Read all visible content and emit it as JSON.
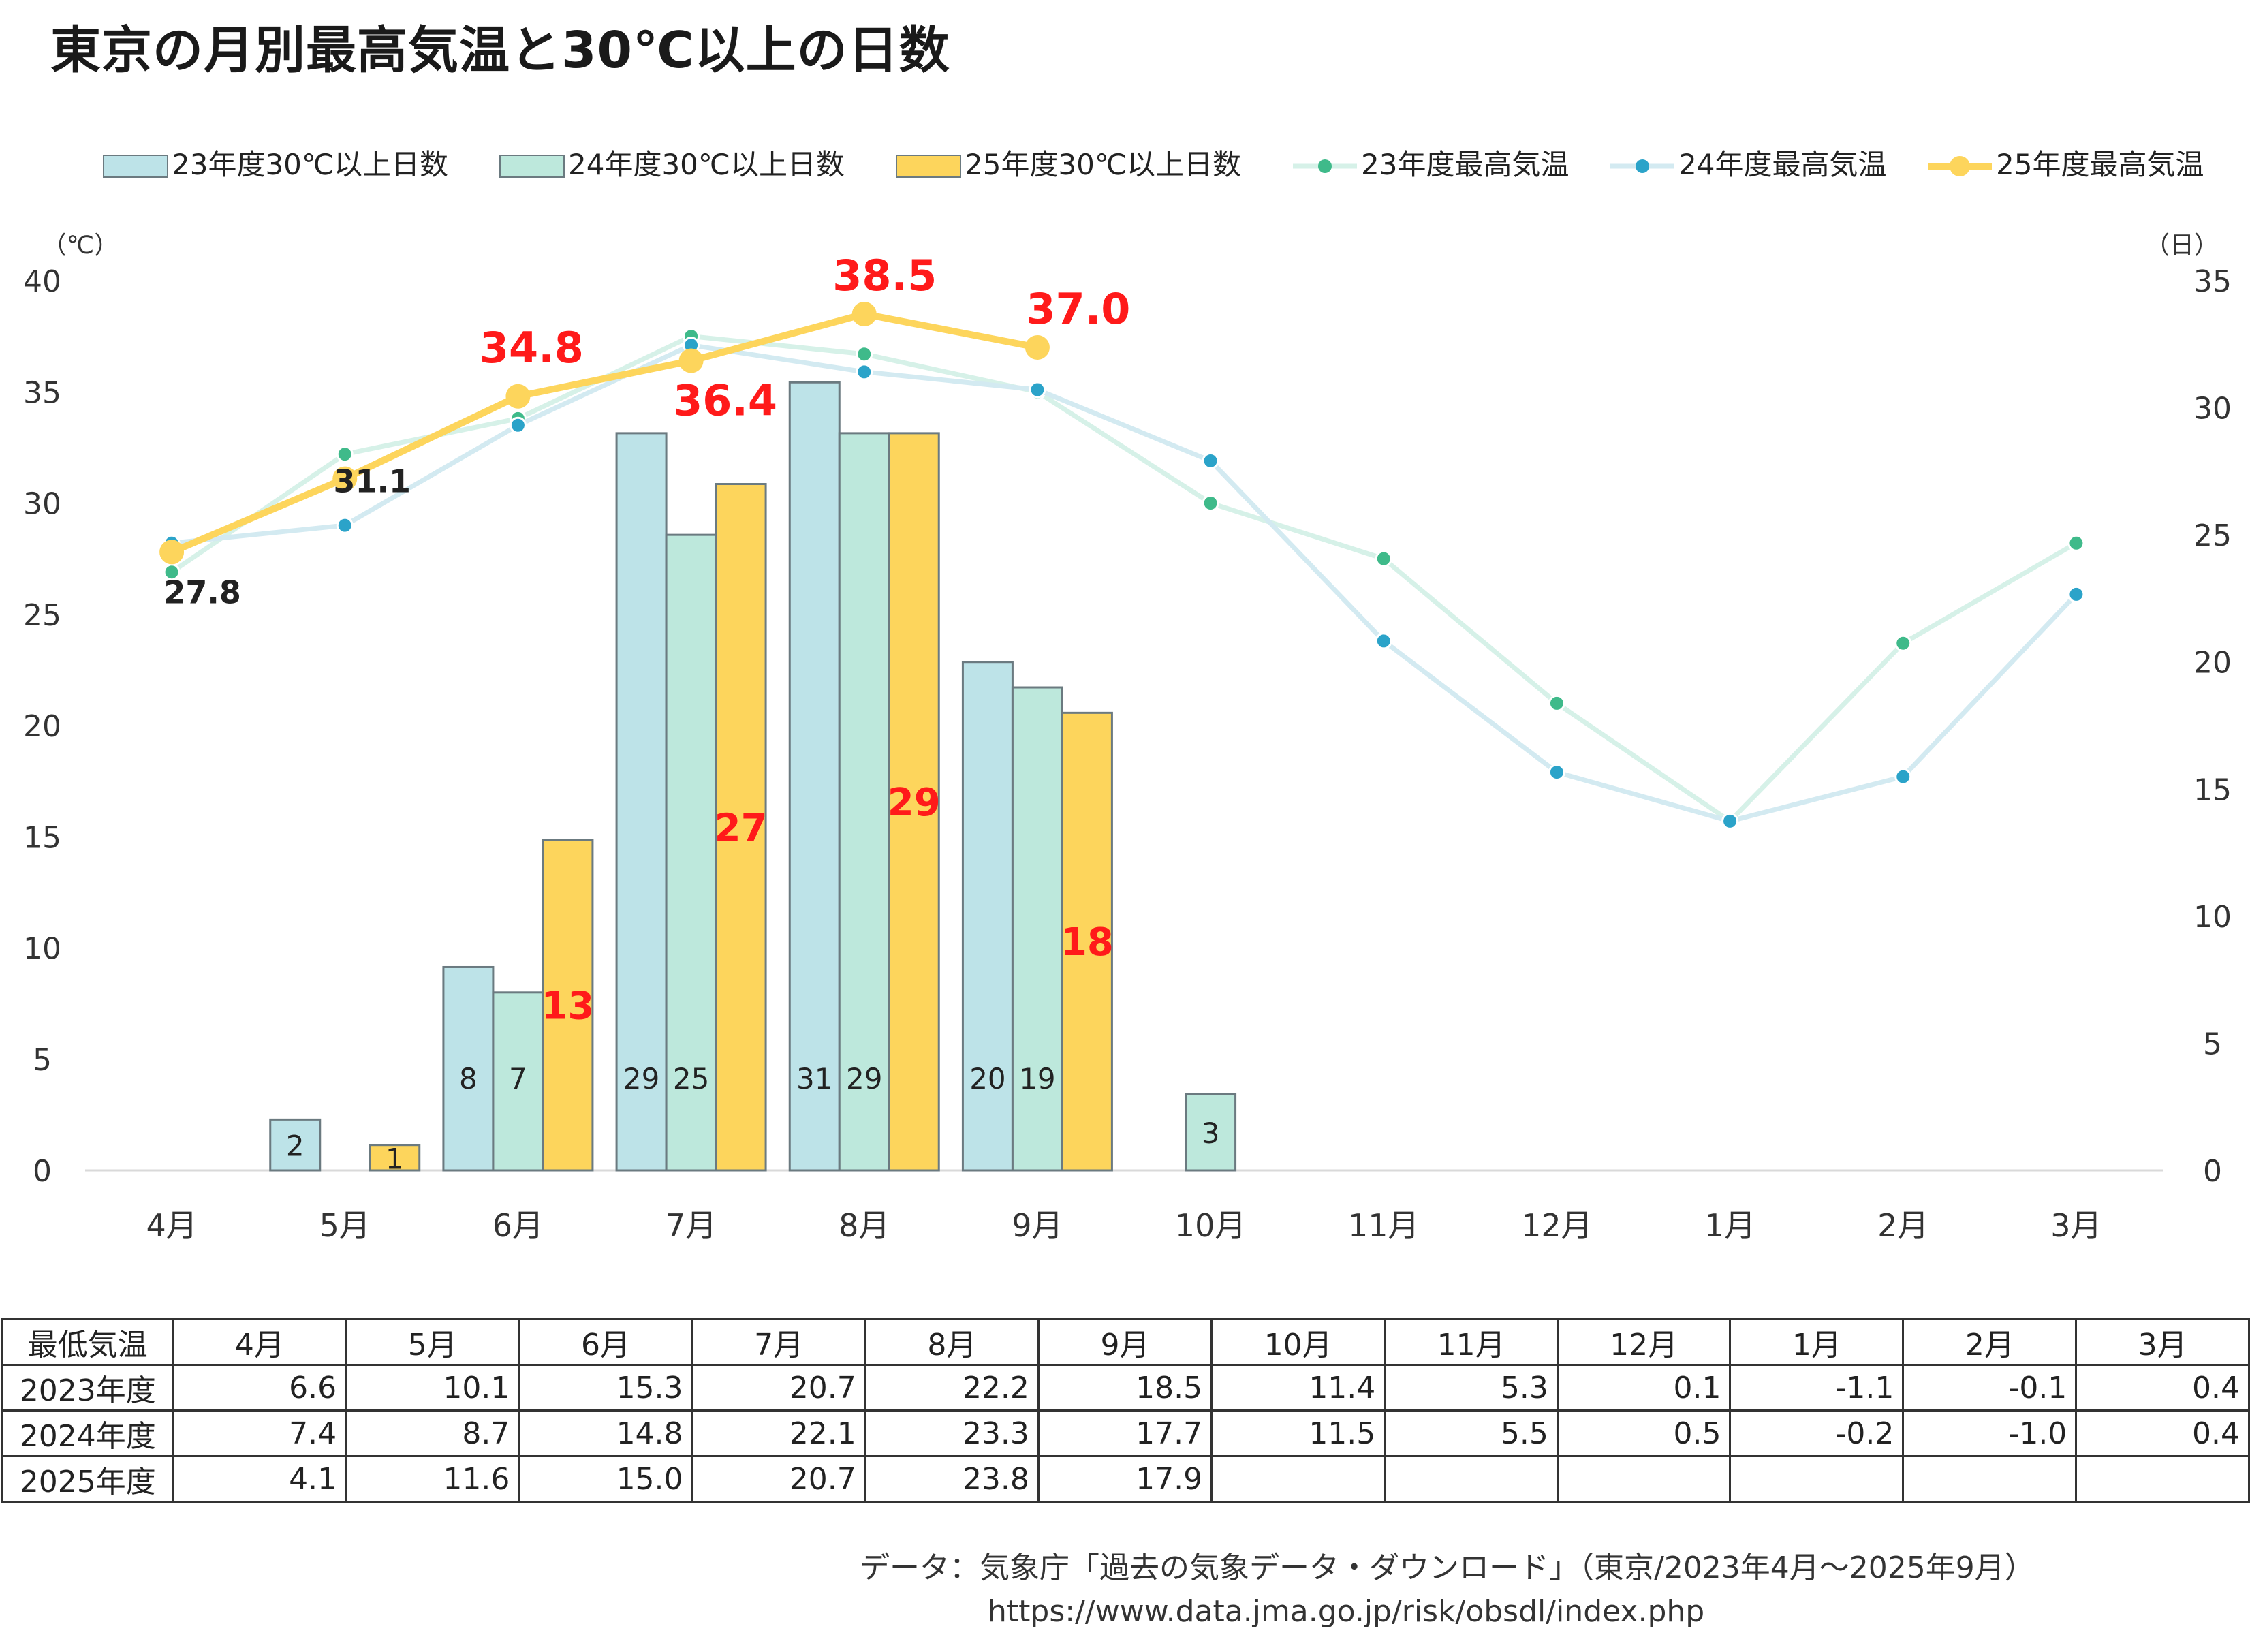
{
  "title": "東京の月別最高気温と30℃以上の日数",
  "chart_data": {
    "type": "bar+line",
    "left_axis_unit": "（℃）",
    "right_axis_unit": "（日）",
    "left_ylim": [
      0,
      40
    ],
    "left_ticks": [
      0,
      5,
      10,
      15,
      20,
      25,
      30,
      35,
      40
    ],
    "right_ylim": [
      0,
      35
    ],
    "right_ticks": [
      0,
      5,
      10,
      15,
      20,
      25,
      30,
      35
    ],
    "categories": [
      "4月",
      "5月",
      "6月",
      "7月",
      "8月",
      "9月",
      "10月",
      "11月",
      "12月",
      "1月",
      "2月",
      "3月"
    ],
    "bar_series": [
      {
        "name": "23年度30℃以上日数",
        "color": "#bde3e8",
        "values": [
          0,
          2,
          8,
          29,
          31,
          20,
          0,
          0,
          0,
          0,
          0,
          0
        ],
        "labels": [
          "",
          "2",
          "8",
          "29",
          "31",
          "20",
          "",
          "",
          "",
          "",
          "",
          ""
        ]
      },
      {
        "name": "24年度30℃以上日数",
        "color": "#bde8dc",
        "values": [
          0,
          0,
          7,
          25,
          29,
          19,
          3,
          0,
          0,
          0,
          0,
          0
        ],
        "labels": [
          "",
          "",
          "7",
          "25",
          "29",
          "19",
          "3",
          "",
          "",
          "",
          "",
          ""
        ]
      },
      {
        "name": "25年度30℃以上日数",
        "color": "#fdd55c",
        "values": [
          0,
          1,
          13,
          27,
          29,
          18,
          null,
          null,
          null,
          null,
          null,
          null
        ],
        "labels": [
          "",
          "1",
          "13",
          "27",
          "29",
          "18",
          "",
          "",
          "",
          "",
          "",
          ""
        ]
      }
    ],
    "line_series": [
      {
        "name": "23年度最高気温",
        "color": "#d6f1e8",
        "marker": "#3fba8a",
        "values": [
          26.9,
          32.2,
          33.8,
          37.5,
          36.7,
          35.0,
          30.0,
          27.5,
          21.0,
          15.7,
          23.7,
          28.2
        ]
      },
      {
        "name": "24年度最高気温",
        "color": "#d3eaf1",
        "marker": "#2ba3c9",
        "values": [
          28.2,
          29.0,
          33.5,
          37.1,
          35.9,
          35.1,
          31.9,
          23.8,
          17.9,
          15.7,
          17.7,
          25.9
        ]
      },
      {
        "name": "25年度最高気温",
        "color": "#fdd55c",
        "marker": "#fdd55c",
        "values": [
          27.8,
          31.1,
          34.8,
          36.4,
          38.5,
          37.0,
          null,
          null,
          null,
          null,
          null,
          null
        ],
        "labels": [
          "27.8",
          "31.1",
          "34.8",
          "36.4",
          "38.5",
          "37.0"
        ]
      }
    ]
  },
  "table": {
    "header": [
      "最低気温",
      "4月",
      "5月",
      "6月",
      "7月",
      "8月",
      "9月",
      "10月",
      "11月",
      "12月",
      "1月",
      "2月",
      "3月"
    ],
    "rows": [
      {
        "label": "2023年度",
        "values": [
          "6.6",
          "10.1",
          "15.3",
          "20.7",
          "22.2",
          "18.5",
          "11.4",
          "5.3",
          "0.1",
          "-1.1",
          "-0.1",
          "0.4"
        ]
      },
      {
        "label": "2024年度",
        "values": [
          "7.4",
          "8.7",
          "14.8",
          "22.1",
          "23.3",
          "17.7",
          "11.5",
          "5.5",
          "0.5",
          "-0.2",
          "-1.0",
          "0.4"
        ]
      },
      {
        "label": "2025年度",
        "values": [
          "4.1",
          "11.6",
          "15.0",
          "20.7",
          "23.8",
          "17.9",
          "",
          "",
          "",
          "",
          "",
          ""
        ]
      }
    ]
  },
  "footer": {
    "source": "データ：気象庁「過去の気象データ・ダウンロード」（東京/2023年4月～2025年9月）",
    "url": "https://www.data.jma.go.jp/risk/obsdl/index.php"
  }
}
